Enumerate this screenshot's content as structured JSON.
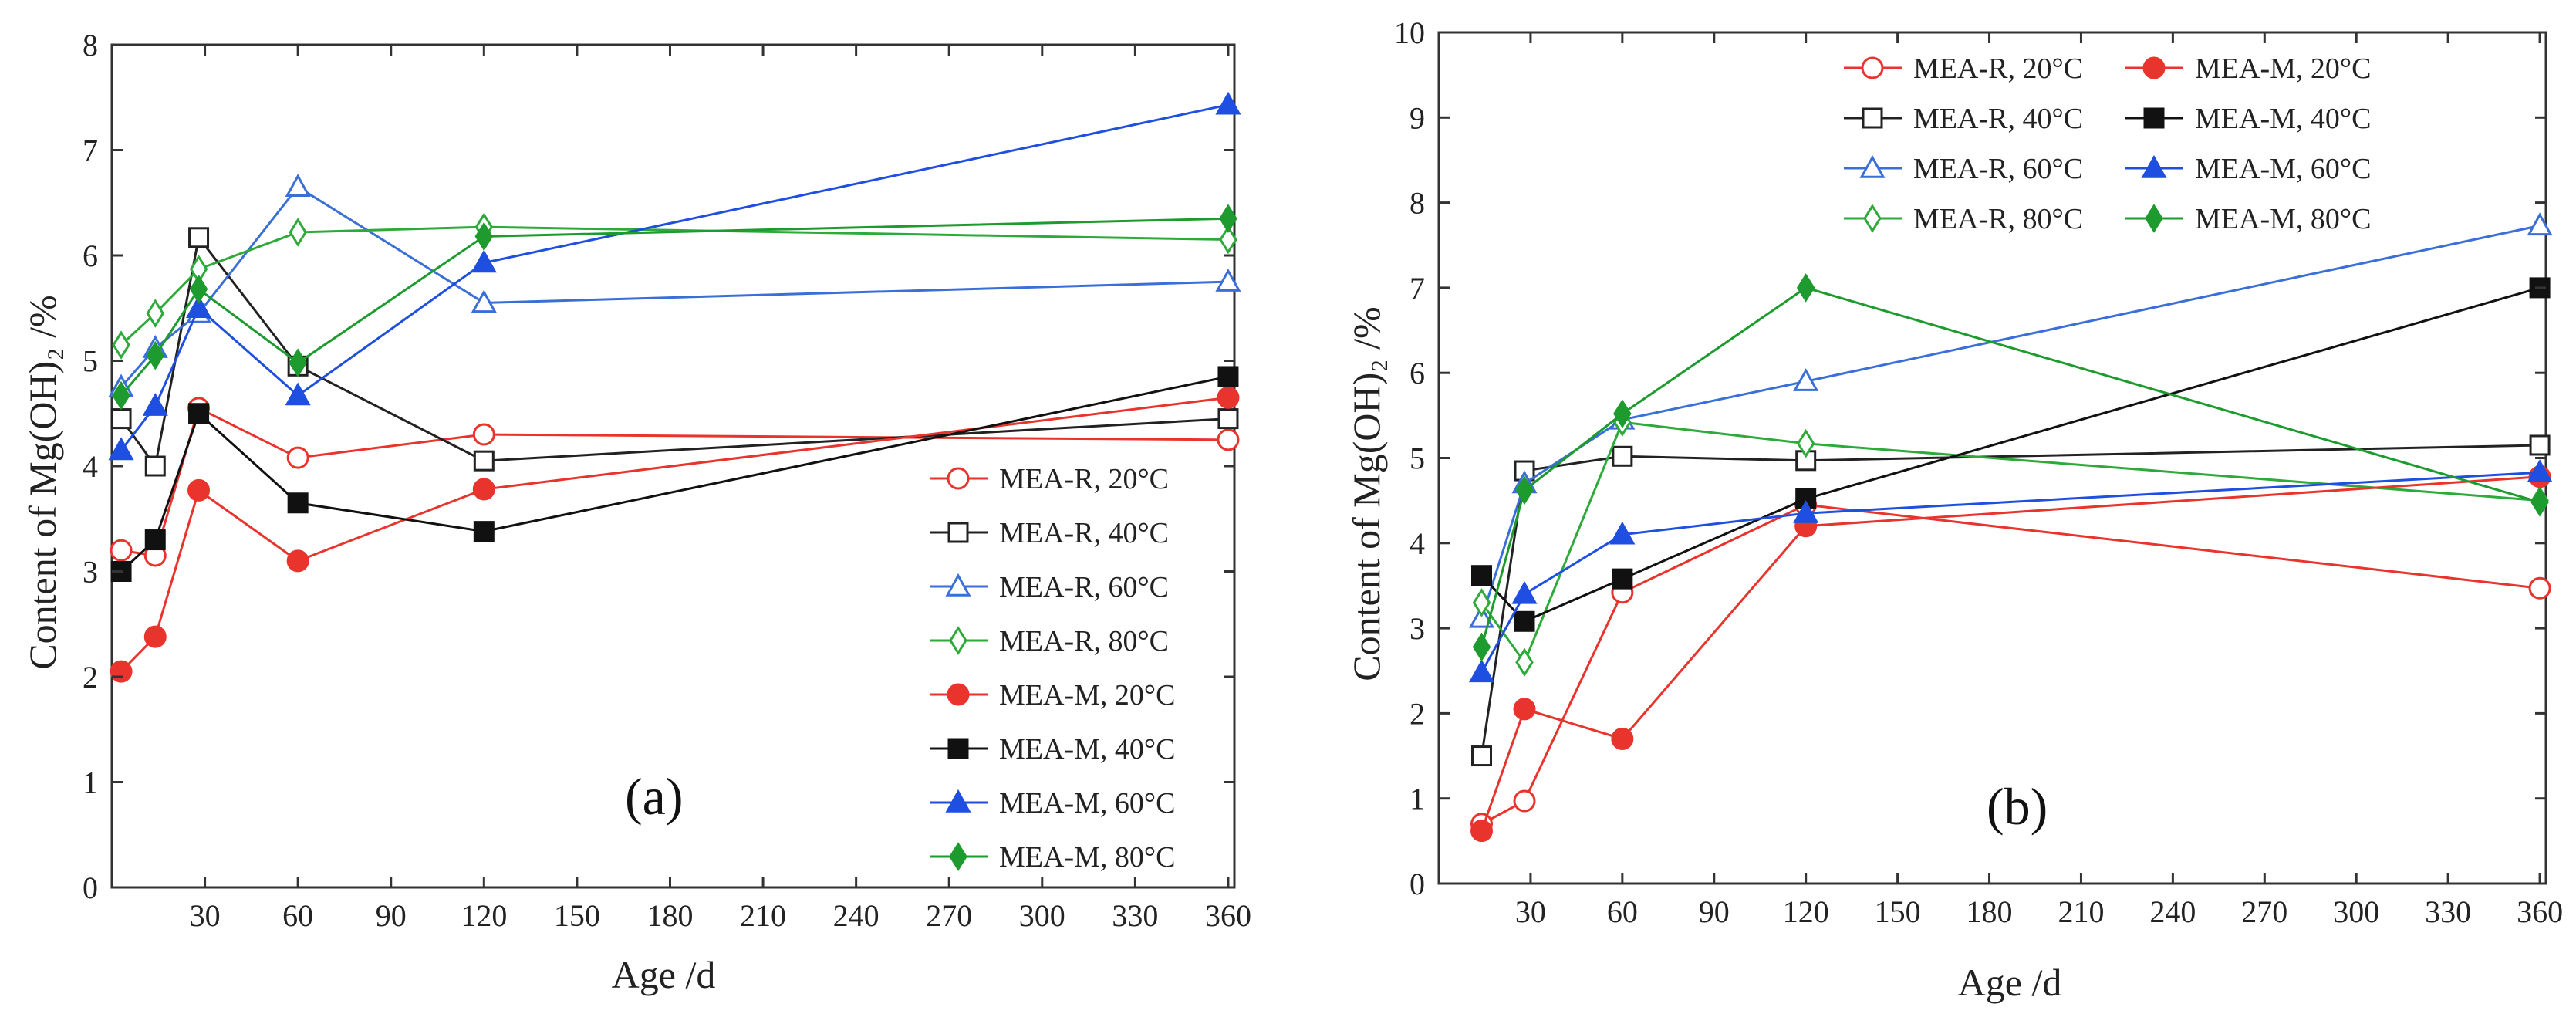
{
  "colors": {
    "MEA-R, 20°C": "#e8342c",
    "MEA-R, 40°C": "#222222",
    "MEA-R, 60°C": "#3a6fd8",
    "MEA-R, 80°C": "#2eaa3a",
    "MEA-M, 20°C": "#e8342c",
    "MEA-M, 40°C": "#111111",
    "MEA-M, 60°C": "#1f4fe0",
    "MEA-M, 80°C": "#1e9b2e"
  },
  "chart_data": [
    {
      "type": "line",
      "panel_label": "(a)",
      "xlabel": "Age /d",
      "ylabel": "Content of Mg(OH)₂ /%",
      "xlim": [
        0,
        362
      ],
      "ylim": [
        0,
        8
      ],
      "xticks": [
        30,
        60,
        90,
        120,
        150,
        180,
        210,
        240,
        270,
        300,
        330,
        360
      ],
      "yticks": [
        0,
        1,
        2,
        3,
        4,
        5,
        6,
        7,
        8
      ],
      "legend_position": "bottom-right",
      "series": [
        {
          "name": "MEA-R, 20°C",
          "marker": "circle-open",
          "x": [
            3,
            14,
            28,
            60,
            120,
            360
          ],
          "y": [
            3.2,
            3.15,
            4.55,
            4.08,
            4.3,
            4.25
          ]
        },
        {
          "name": "MEA-R, 40°C",
          "marker": "square-open",
          "x": [
            3,
            14,
            28,
            60,
            120,
            360
          ],
          "y": [
            4.45,
            4.0,
            6.17,
            4.95,
            4.05,
            4.45
          ]
        },
        {
          "name": "MEA-R, 60°C",
          "marker": "triangle-open",
          "x": [
            3,
            14,
            28,
            60,
            120,
            360
          ],
          "y": [
            4.75,
            5.12,
            5.45,
            6.65,
            5.55,
            5.75
          ]
        },
        {
          "name": "MEA-R, 80°C",
          "marker": "diamond-open",
          "x": [
            3,
            14,
            28,
            60,
            120,
            360
          ],
          "y": [
            5.15,
            5.45,
            5.87,
            6.22,
            6.27,
            6.15
          ]
        },
        {
          "name": "MEA-M, 20°C",
          "marker": "circle-filled",
          "x": [
            3,
            14,
            28,
            60,
            120,
            360
          ],
          "y": [
            2.05,
            2.38,
            3.77,
            3.1,
            3.78,
            4.65
          ]
        },
        {
          "name": "MEA-M, 40°C",
          "marker": "square-filled",
          "x": [
            3,
            14,
            28,
            60,
            120,
            360
          ],
          "y": [
            3.0,
            3.3,
            4.5,
            3.65,
            3.38,
            4.85
          ]
        },
        {
          "name": "MEA-M, 60°C",
          "marker": "triangle-filled",
          "x": [
            3,
            14,
            28,
            60,
            120,
            360
          ],
          "y": [
            4.15,
            4.57,
            5.5,
            4.67,
            5.93,
            7.43
          ]
        },
        {
          "name": "MEA-M, 80°C",
          "marker": "diamond-filled",
          "x": [
            3,
            14,
            28,
            60,
            120,
            360
          ],
          "y": [
            4.67,
            5.05,
            5.68,
            4.98,
            6.18,
            6.35
          ]
        }
      ]
    },
    {
      "type": "line",
      "panel_label": "(b)",
      "xlabel": "Age /d",
      "ylabel": "Content of Mg(OH)₂ /%",
      "xlim": [
        0,
        362
      ],
      "ylim": [
        0,
        10
      ],
      "xticks": [
        30,
        60,
        90,
        120,
        150,
        180,
        210,
        240,
        270,
        300,
        330,
        360
      ],
      "yticks": [
        0,
        1,
        2,
        3,
        4,
        5,
        6,
        7,
        8,
        9,
        10
      ],
      "legend_position": "top, two columns",
      "series": [
        {
          "name": "MEA-R, 20°C",
          "marker": "circle-open",
          "x": [
            14,
            28,
            60,
            120,
            360
          ],
          "y": [
            0.7,
            0.97,
            3.42,
            4.45,
            3.47
          ]
        },
        {
          "name": "MEA-R, 40°C",
          "marker": "square-open",
          "x": [
            14,
            28,
            60,
            120,
            360
          ],
          "y": [
            1.5,
            4.85,
            5.02,
            4.97,
            5.15
          ]
        },
        {
          "name": "MEA-R, 60°C",
          "marker": "triangle-open",
          "x": [
            14,
            28,
            60,
            120,
            360
          ],
          "y": [
            3.12,
            4.7,
            5.45,
            5.9,
            7.73
          ]
        },
        {
          "name": "MEA-R, 80°C",
          "marker": "diamond-open",
          "x": [
            14,
            28,
            60,
            120,
            360
          ],
          "y": [
            3.3,
            2.6,
            5.42,
            5.17,
            4.5
          ]
        },
        {
          "name": "MEA-M, 20°C",
          "marker": "circle-filled",
          "x": [
            14,
            28,
            60,
            120,
            360
          ],
          "y": [
            0.62,
            2.05,
            1.7,
            4.2,
            4.78
          ]
        },
        {
          "name": "MEA-M, 40°C",
          "marker": "square-filled",
          "x": [
            14,
            28,
            60,
            120,
            360
          ],
          "y": [
            3.62,
            3.08,
            3.58,
            4.52,
            7.0
          ]
        },
        {
          "name": "MEA-M, 60°C",
          "marker": "triangle-filled",
          "x": [
            14,
            28,
            60,
            120,
            360
          ],
          "y": [
            2.48,
            3.4,
            4.1,
            4.35,
            4.83
          ]
        },
        {
          "name": "MEA-M, 80°C",
          "marker": "diamond-filled",
          "x": [
            14,
            28,
            60,
            120,
            360
          ],
          "y": [
            2.78,
            4.62,
            5.52,
            7.0,
            4.48
          ]
        }
      ]
    }
  ]
}
